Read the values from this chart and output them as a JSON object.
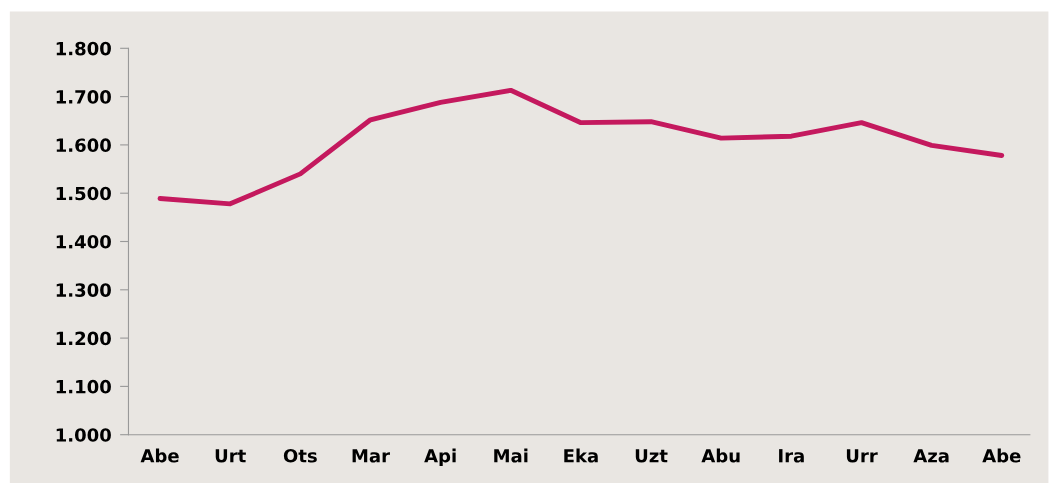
{
  "chart_data": {
    "type": "line",
    "categories": [
      "Abe",
      "Urt",
      "Ots",
      "Mar",
      "Api",
      "Mai",
      "Eka",
      "Uzt",
      "Abu",
      "Ira",
      "Urr",
      "Aza",
      "Abe"
    ],
    "series": [
      {
        "color": "#c4195e",
        "values": [
          1489,
          1478,
          1540,
          1652,
          1688,
          1713,
          1646,
          1648,
          1614,
          1618,
          1646,
          1599,
          1578
        ]
      }
    ],
    "ylim": [
      1000,
      1800
    ],
    "yticks": [
      {
        "value": 1000,
        "label": "1.000"
      },
      {
        "value": 1100,
        "label": "1.100"
      },
      {
        "value": 1200,
        "label": "1.200"
      },
      {
        "value": 1300,
        "label": "1.300"
      },
      {
        "value": 1400,
        "label": "1.400"
      },
      {
        "value": 1500,
        "label": "1.500"
      },
      {
        "value": 1600,
        "label": "1.600"
      },
      {
        "value": 1700,
        "label": "1.700"
      },
      {
        "value": 1800,
        "label": "1.800"
      }
    ],
    "grid": false,
    "marker": "none",
    "line_style": "solid"
  }
}
